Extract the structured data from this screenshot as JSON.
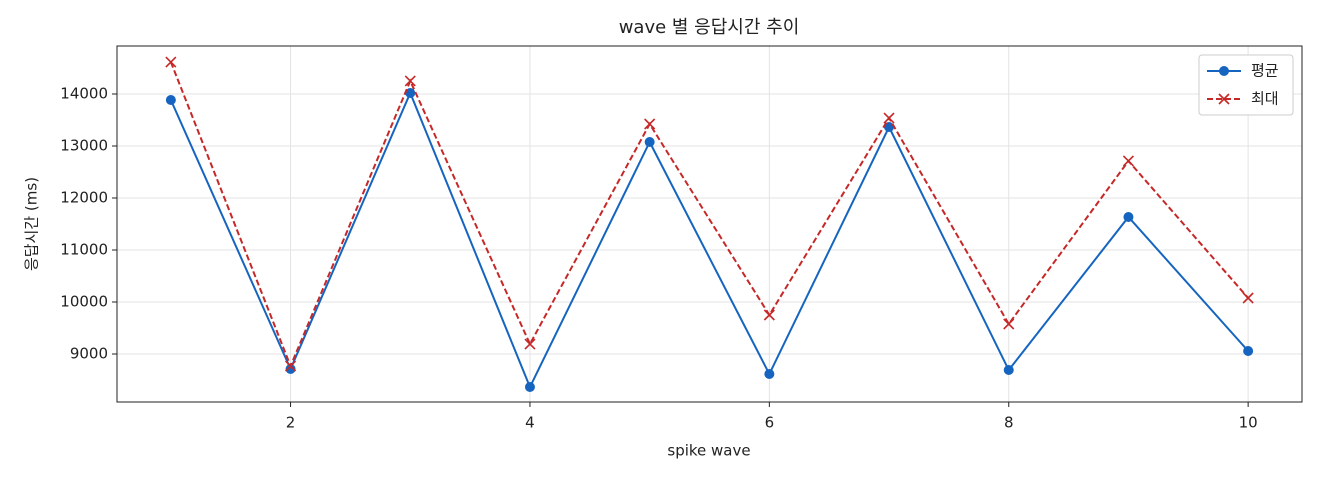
{
  "chart_data": {
    "type": "line",
    "title": "wave 별 응답시간 추이",
    "x_label": "spike wave",
    "y_label": "응답시간 (ms)",
    "x": [
      1,
      2,
      3,
      4,
      5,
      6,
      7,
      8,
      9,
      10
    ],
    "series": [
      {
        "name": "평균",
        "color": "#1565c0",
        "marker": "circle",
        "dash": false,
        "values": [
          13885,
          8712,
          14019,
          8365,
          13077,
          8615,
          13365,
          8692,
          11635,
          9058
        ]
      },
      {
        "name": "최대",
        "color": "#c62828",
        "marker": "x",
        "dash": true,
        "values": [
          14615,
          8769,
          14250,
          9192,
          13423,
          9750,
          13538,
          9577,
          12712,
          10077
        ]
      }
    ],
    "xlim": [
      0.55,
      10.45
    ],
    "xticks": [
      2,
      4,
      6,
      8,
      10
    ],
    "ylim": [
      8077,
      14923
    ],
    "yticks": [
      9000,
      10000,
      11000,
      12000,
      13000,
      14000
    ],
    "grid": true,
    "legend": "upper right"
  }
}
